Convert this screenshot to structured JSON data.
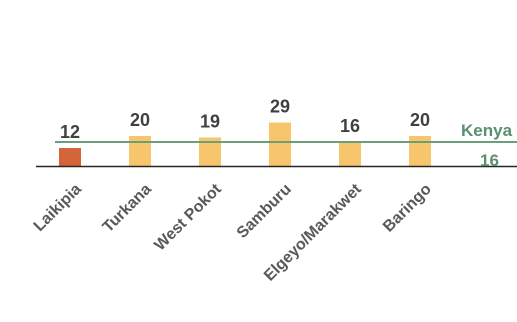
{
  "chart_data": {
    "type": "bar",
    "categories": [
      "Laikipia",
      "Turkana",
      "West Pokot",
      "Samburu",
      "Elgeyo/Marakwet",
      "Baringo"
    ],
    "values": [
      12,
      20,
      19,
      29,
      16,
      20
    ],
    "highlight_category": "Laikipia",
    "reference_line": {
      "label": "Kenya",
      "value_label": "16",
      "value": 16
    },
    "colors": {
      "bar": "#f7c56b",
      "highlight": "#d4643a",
      "reference": "#6b9e7a",
      "axis": "#262626"
    },
    "legend": "none",
    "grid": false
  }
}
